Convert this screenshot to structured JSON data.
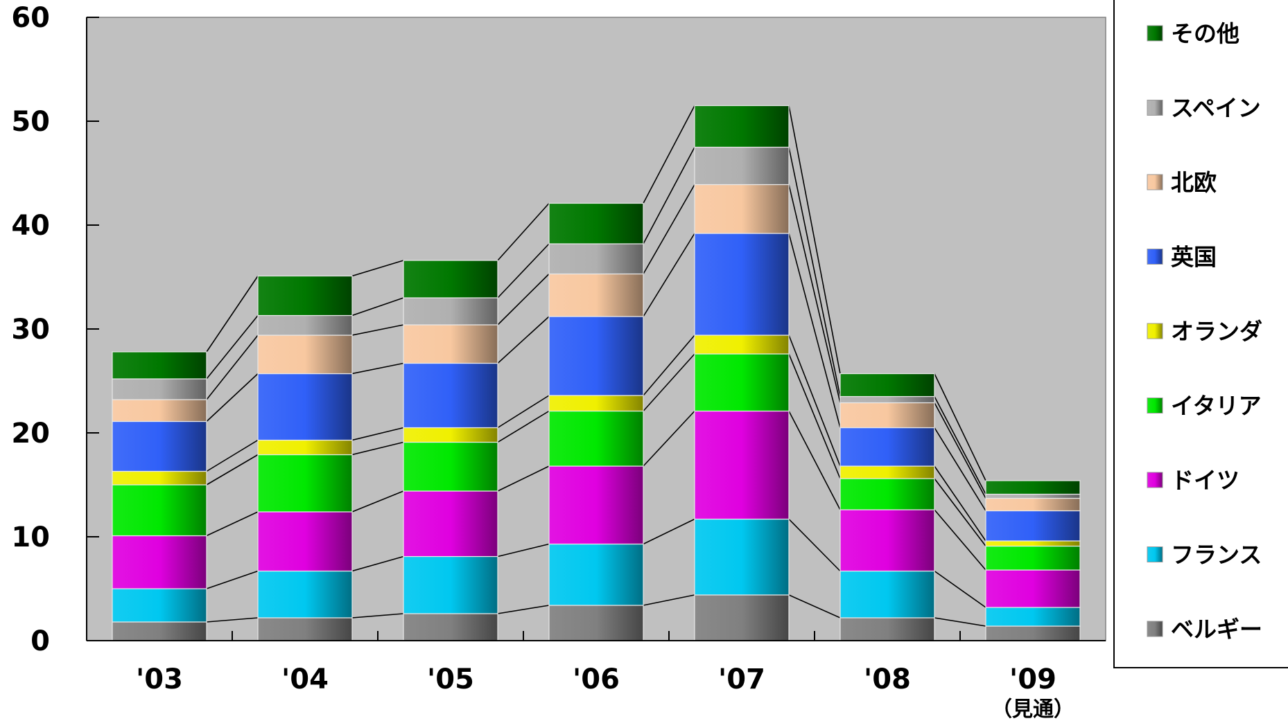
{
  "chart_data": {
    "type": "bar",
    "stacked": true,
    "categories": [
      "'03",
      "'04",
      "'05",
      "'06",
      "'07",
      "'08",
      "'09"
    ],
    "category_notes": [
      "",
      "",
      "",
      "",
      "",
      "",
      "（見通）"
    ],
    "ylim": [
      0,
      60
    ],
    "yticks": [
      0,
      10,
      20,
      30,
      40,
      50,
      60
    ],
    "grid": false,
    "legend_position": "right",
    "plot_background": "#c0c0c0",
    "series": [
      {
        "name": "ベルギー",
        "color": "#808080",
        "values": [
          1.8,
          2.2,
          2.6,
          3.4,
          4.4,
          2.2,
          1.4
        ]
      },
      {
        "name": "フランス",
        "color": "#00c8f0",
        "values": [
          3.2,
          4.5,
          5.5,
          5.9,
          7.3,
          4.5,
          1.8
        ]
      },
      {
        "name": "ドイツ",
        "color": "#e000e0",
        "values": [
          5.1,
          5.7,
          6.3,
          7.5,
          10.4,
          5.9,
          3.6
        ]
      },
      {
        "name": "イタリア",
        "color": "#00e800",
        "values": [
          4.9,
          5.5,
          4.7,
          5.3,
          5.5,
          3.0,
          2.3
        ]
      },
      {
        "name": "オランダ",
        "color": "#f0f000",
        "values": [
          1.3,
          1.4,
          1.4,
          1.5,
          1.8,
          1.2,
          0.5
        ]
      },
      {
        "name": "英国",
        "color": "#3060f8",
        "values": [
          4.8,
          6.4,
          6.2,
          7.6,
          9.8,
          3.7,
          2.9
        ]
      },
      {
        "name": "北欧",
        "color": "#f8c8a0",
        "values": [
          2.1,
          3.7,
          3.7,
          4.1,
          4.7,
          2.4,
          1.2
        ]
      },
      {
        "name": "スペイン",
        "color": "#b0b0b0",
        "values": [
          2.0,
          1.9,
          2.6,
          2.9,
          3.6,
          0.6,
          0.4
        ]
      },
      {
        "name": "その他",
        "color": "#007800",
        "values": [
          2.6,
          3.8,
          3.6,
          3.9,
          4.0,
          2.2,
          1.3
        ]
      }
    ]
  }
}
